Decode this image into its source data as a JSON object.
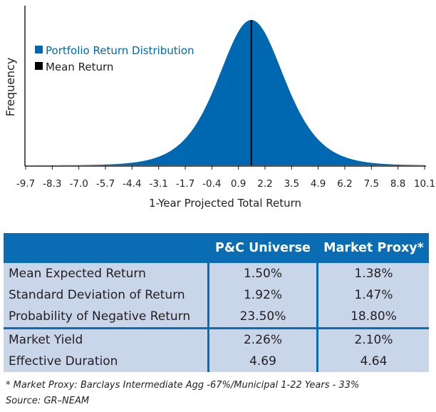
{
  "chart_data": {
    "type": "area",
    "distribution": "bell curve",
    "mean": 1.5,
    "ylabel": "Frequency",
    "xlabel": "1-Year Projected Total Return",
    "xlim": [
      -9.7,
      10.1
    ],
    "x_ticks": [
      "-9.7",
      "-8.3",
      "-7.0",
      "-5.7",
      "-4.4",
      "-3.1",
      "-1.7",
      "-0.4",
      "0.9",
      "2.2",
      "3.5",
      "4.9",
      "6.2",
      "7.5",
      "8.8",
      "10.1"
    ],
    "legend": [
      {
        "label": "Portfolio Return Distribution",
        "color": "#0068b0"
      },
      {
        "label": "Mean Return",
        "color": "#000000"
      }
    ],
    "legend_placement": "top-left",
    "grid": false
  },
  "table": {
    "headers": [
      "",
      "P&C Universe",
      "Market Proxy*"
    ],
    "rows": [
      [
        "Mean Expected Return",
        "1.50%",
        "1.38%"
      ],
      [
        "Standard Deviation of Return",
        "1.92%",
        "1.47%"
      ],
      [
        "Probability of Negative Return",
        "23.50%",
        "18.80%"
      ],
      [
        "Market Yield",
        "2.26%",
        "2.10%"
      ],
      [
        "Effective Duration",
        "4.69",
        "4.64"
      ]
    ]
  },
  "footnote": "* Market Proxy: Barclays Intermediate Agg -67%/Municipal 1-22 Years - 33%",
  "source": "Source: GR–NEAM"
}
